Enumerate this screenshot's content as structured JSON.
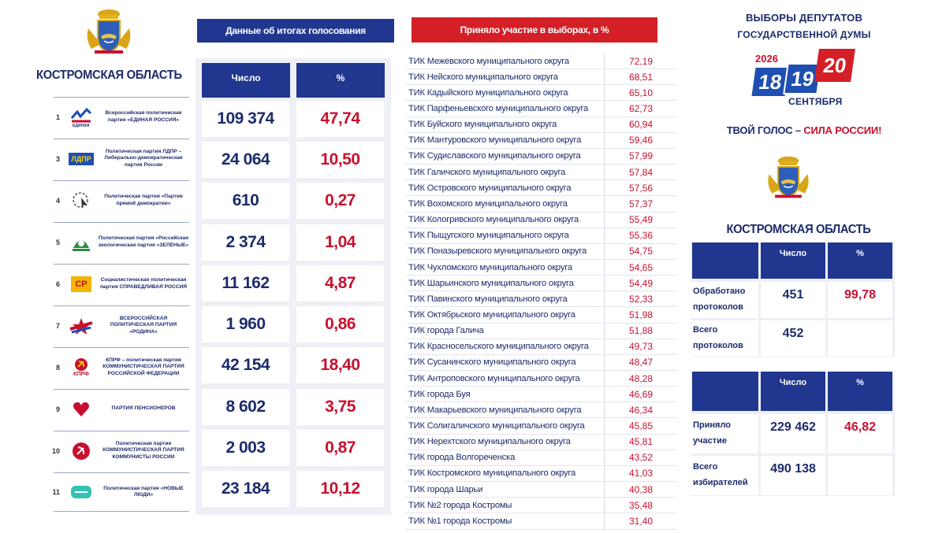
{
  "left": {
    "region": "КОСТРОМСКАЯ ОБЛАСТЬ",
    "parties": [
      {
        "num": "1",
        "name": "Всероссийская политическая партия «ЕДИНАЯ РОССИЯ»",
        "logo": "edinaya-rossiya-logo",
        "count": "109 374",
        "pct": "47,74"
      },
      {
        "num": "3",
        "name": "Политическая партия ЛДПР – Либерально-демократическая партия России",
        "logo": "ldpr-logo",
        "count": "24 064",
        "pct": "10,50"
      },
      {
        "num": "4",
        "name": "Политическая партия «Партия прямой демократии»",
        "logo": "ppd-logo",
        "count": "610",
        "pct": "0,27"
      },
      {
        "num": "5",
        "name": "Политическая партия «Российская экологическая партия «ЗЕЛЁНЫЕ»",
        "logo": "zelenye-logo",
        "count": "2 374",
        "pct": "1,04"
      },
      {
        "num": "6",
        "name": "Социалистическая политическая партия СПРАВЕДЛИВАЯ РОССИЯ",
        "logo": "sr-logo",
        "count": "11 162",
        "pct": "4,87"
      },
      {
        "num": "7",
        "name": "ВСЕРОССИЙСКАЯ ПОЛИТИЧЕСКАЯ ПАРТИЯ «РОДИНА»",
        "logo": "rodina-logo",
        "count": "1 960",
        "pct": "0,86"
      },
      {
        "num": "8",
        "name": "КПРФ – политическая партия КОММУНИСТИЧЕСКАЯ ПАРТИЯ РОССИЙСКОЙ ФЕДЕРАЦИИ",
        "logo": "kprf-logo",
        "count": "42 154",
        "pct": "18,40"
      },
      {
        "num": "9",
        "name": "ПАРТИЯ ПЕНСИОНЕРОВ",
        "logo": "pensioners-logo",
        "count": "8 602",
        "pct": "3,75"
      },
      {
        "num": "10",
        "name": "Политическая партия КОММУНИСТИЧЕСКАЯ ПАРТИЯ КОММУНИСТЫ РОССИИ",
        "logo": "kommunisty-logo",
        "count": "2 003",
        "pct": "0,87"
      },
      {
        "num": "11",
        "name": "Политическая партия «НОВЫЕ ЛЮДИ»",
        "logo": "novye-lyudi-logo",
        "count": "23 184",
        "pct": "10,12"
      }
    ],
    "logo_texts": {
      "ldpr": "ЛДПР",
      "kprf": "КПРФ",
      "sr": "СР"
    }
  },
  "results": {
    "header": "Данные об итогах голосования",
    "col_count": "Число",
    "col_pct": "%"
  },
  "turnout": {
    "header": "Приняло участие в выборах, в %",
    "rows": [
      {
        "name": "ТИК Межевского муниципального округа",
        "value": "72,19"
      },
      {
        "name": "ТИК Нейского муниципального округа",
        "value": "68,51"
      },
      {
        "name": "ТИК Кадыйского муниципального округа",
        "value": "65,10"
      },
      {
        "name": "ТИК Парфеньевского муниципального округа",
        "value": "62,73"
      },
      {
        "name": "ТИК Буйского муниципального округа",
        "value": "60,94"
      },
      {
        "name": "ТИК Мантуровского муниципального округа",
        "value": "59,46"
      },
      {
        "name": "ТИК Судиславского муниципального округа",
        "value": "57,99"
      },
      {
        "name": "ТИК Галичского муниципального округа",
        "value": "57,84"
      },
      {
        "name": "ТИК Островского муниципального округа",
        "value": "57,56"
      },
      {
        "name": "ТИК Вохомского муниципального округа",
        "value": "57,37"
      },
      {
        "name": "ТИК Кологривского муниципального округа",
        "value": "55,49"
      },
      {
        "name": "ТИК Пыщугского муниципального округа",
        "value": "55,36"
      },
      {
        "name": "ТИК Поназыревского муниципального округа",
        "value": "54,75"
      },
      {
        "name": "ТИК Чухломского муниципального округа",
        "value": "54,65"
      },
      {
        "name": "ТИК Шарьинского муниципального округа",
        "value": "54,49"
      },
      {
        "name": "ТИК Павинского муниципального округа",
        "value": "52,33"
      },
      {
        "name": "ТИК Октябрьского муниципального округа",
        "value": "51,98"
      },
      {
        "name": "ТИК города Галича",
        "value": "51,88"
      },
      {
        "name": "ТИК Красносельского муниципального округа",
        "value": "49,73"
      },
      {
        "name": "ТИК Сусанинского муниципального округа",
        "value": "48,47"
      },
      {
        "name": "ТИК Антроповского муниципального округа",
        "value": "48,28"
      },
      {
        "name": "ТИК города Буя",
        "value": "46,69"
      },
      {
        "name": "ТИК Макарьевского муниципального округа",
        "value": "46,34"
      },
      {
        "name": "ТИК Солигаличского муниципального округа",
        "value": "45,85"
      },
      {
        "name": "ТИК Нерехтского муниципального округа",
        "value": "45,81"
      },
      {
        "name": "ТИК города Волгореченска",
        "value": "43,52"
      },
      {
        "name": "ТИК Костромского муниципального округа",
        "value": "41,03"
      },
      {
        "name": "ТИК города Шарьи",
        "value": "40,38"
      },
      {
        "name": "ТИК №2 города Костромы",
        "value": "35,48"
      },
      {
        "name": "ТИК №1 города Костромы",
        "value": "31,40"
      }
    ]
  },
  "right": {
    "title_line1": "ВЫБОРЫ ДЕПУТАТОВ",
    "title_line2": "ГОСУДАРСТВЕННОЙ ДУМЫ",
    "logo": {
      "year": "2026",
      "day1": "18",
      "day2": "19",
      "day3": "20",
      "month": "СЕНТЯБРЯ"
    },
    "slogan_part1": "ТВОЙ ГОЛОС – ",
    "slogan_part2": "СИЛА РОССИИ!",
    "region": "КОСТРОМСКАЯ ОБЛАСТЬ",
    "protocols": {
      "col_count": "Число",
      "col_pct": "%",
      "processed_label": "Обработано протоколов",
      "processed_count": "451",
      "processed_pct": "99,78",
      "total_label": "Всего протоколов",
      "total_count": "452"
    },
    "voters": {
      "col_count": "Число",
      "col_pct": "%",
      "participated_label": "Приняло участие",
      "participated_count": "229 462",
      "participated_pct": "46,82",
      "total_label": "Всего избирателей",
      "total_count": "490 138"
    }
  },
  "colors": {
    "navy": "#21378f",
    "red": "#c8102e",
    "header_red": "#d41f27"
  }
}
